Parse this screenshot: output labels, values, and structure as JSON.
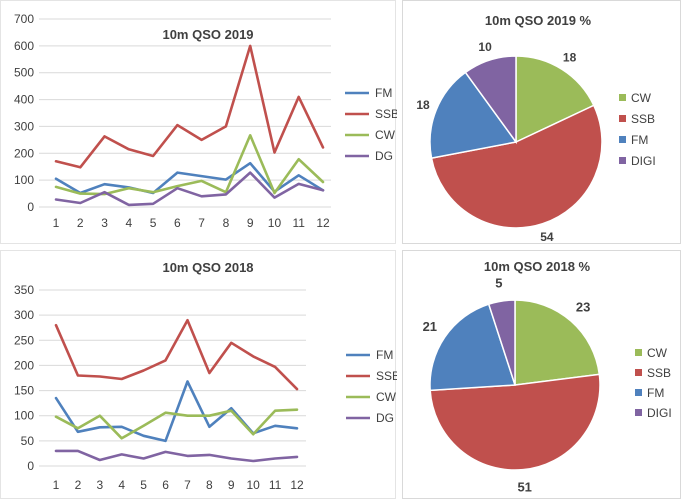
{
  "colors": {
    "FM": "#4f81bd",
    "SSB": "#c0504d",
    "CW": "#9bbb59",
    "DG": "#8064a2"
  },
  "chart_data": [
    {
      "type": "line",
      "title": "10m QSO 2019",
      "categories": [
        "1",
        "2",
        "3",
        "4",
        "5",
        "6",
        "7",
        "8",
        "9",
        "10",
        "11",
        "12"
      ],
      "ylim": [
        0,
        700
      ],
      "yticks": [
        "0",
        "100",
        "200",
        "300",
        "400",
        "500",
        "600",
        "700"
      ],
      "grid": true,
      "legend": "right",
      "series": [
        {
          "name": "FM",
          "values": [
            105,
            52,
            85,
            73,
            52,
            128,
            115,
            102,
            163,
            57,
            118,
            62
          ]
        },
        {
          "name": "SSB",
          "values": [
            170,
            148,
            263,
            215,
            190,
            305,
            250,
            300,
            600,
            203,
            410,
            222
          ]
        },
        {
          "name": "CW",
          "values": [
            75,
            50,
            48,
            70,
            55,
            78,
            97,
            55,
            267,
            52,
            178,
            93
          ]
        },
        {
          "name": "DG",
          "values": [
            28,
            15,
            55,
            8,
            12,
            70,
            40,
            47,
            128,
            35,
            86,
            62
          ]
        }
      ]
    },
    {
      "type": "pie",
      "title": "10m QSO 2019 %",
      "labels": [
        "CW",
        "SSB",
        "FM",
        "DIGI"
      ],
      "values": [
        18,
        54,
        18,
        10
      ],
      "value_labels": [
        "18",
        "54",
        "18",
        "10"
      ],
      "legend": "right"
    },
    {
      "type": "line",
      "title": "10m QSO 2018",
      "categories": [
        "1",
        "2",
        "3",
        "4",
        "5",
        "6",
        "7",
        "8",
        "9",
        "10",
        "11",
        "12"
      ],
      "ylim": [
        0,
        350
      ],
      "yticks": [
        "0",
        "50",
        "100",
        "150",
        "200",
        "250",
        "300",
        "350"
      ],
      "grid": true,
      "legend": "right",
      "series": [
        {
          "name": "FM",
          "values": [
            135,
            68,
            77,
            78,
            60,
            50,
            168,
            78,
            115,
            65,
            80,
            75
          ]
        },
        {
          "name": "SSB",
          "values": [
            280,
            180,
            178,
            173,
            190,
            210,
            290,
            185,
            245,
            218,
            197,
            153
          ]
        },
        {
          "name": "CW",
          "values": [
            98,
            75,
            100,
            55,
            80,
            106,
            100,
            100,
            110,
            63,
            110,
            112
          ]
        },
        {
          "name": "DG",
          "values": [
            30,
            30,
            12,
            23,
            15,
            28,
            20,
            22,
            15,
            10,
            15,
            18
          ]
        }
      ]
    },
    {
      "type": "pie",
      "title": "10m QSO 2018 %",
      "labels": [
        "CW",
        "SSB",
        "FM",
        "DIGI"
      ],
      "values": [
        23,
        51,
        21,
        5
      ],
      "value_labels": [
        "23",
        "51",
        "21",
        "5"
      ],
      "legend": "right"
    }
  ]
}
